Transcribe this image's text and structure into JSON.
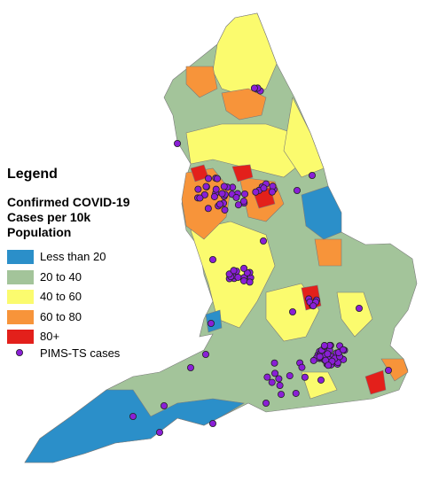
{
  "legend": {
    "title": "Legend",
    "subtitle": "Confirmed COVID-19 Cases per 10k Population",
    "items": [
      {
        "label": "Less than 20",
        "color": "#2b8fc9"
      },
      {
        "label": "20 to 40",
        "color": "#a3c49a"
      },
      {
        "label": "40 to 60",
        "color": "#fbfb6e"
      },
      {
        "label": "60 to 80",
        "color": "#f7943a"
      },
      {
        "label": "80+",
        "color": "#e3201b"
      }
    ],
    "points": {
      "label": "PIMS-TS cases",
      "color": "#8a1fd6"
    }
  }
}
